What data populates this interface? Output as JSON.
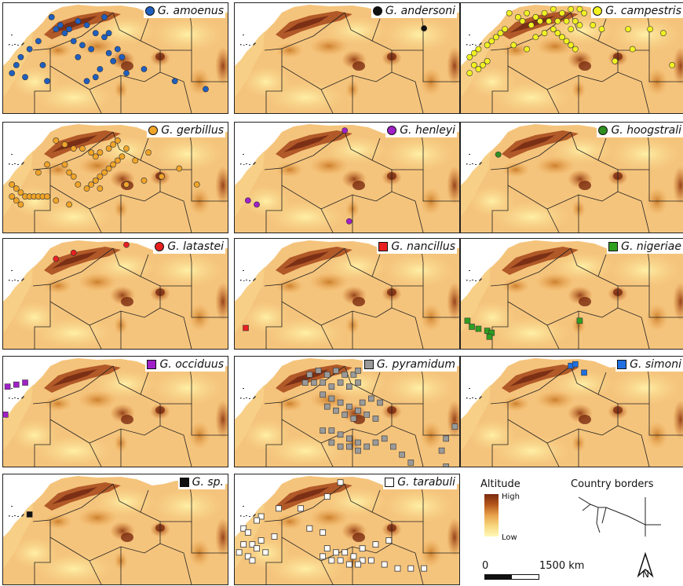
{
  "panels": [
    {
      "id": "amoenus",
      "label": "G. amoenus",
      "symbol": "circle",
      "color": "#1f5fbf",
      "points": [
        [
          -7,
          34
        ],
        [
          -5,
          32
        ],
        [
          -3,
          31
        ],
        [
          -1,
          33
        ],
        [
          1,
          32
        ],
        [
          3,
          30
        ],
        [
          5,
          29
        ],
        [
          -6,
          31
        ],
        [
          -4,
          30
        ],
        [
          -2,
          28
        ],
        [
          0,
          27
        ],
        [
          2,
          26
        ],
        [
          -10,
          28
        ],
        [
          -12,
          26
        ],
        [
          -14,
          24
        ],
        [
          -15,
          22
        ],
        [
          -16,
          20
        ],
        [
          -13,
          19
        ],
        [
          -8,
          18
        ],
        [
          4,
          21
        ],
        [
          3,
          19
        ],
        [
          1,
          18
        ],
        [
          7,
          23
        ],
        [
          6,
          25
        ],
        [
          8,
          26
        ],
        [
          9,
          24
        ],
        [
          -1,
          24
        ],
        [
          10,
          20
        ],
        [
          14,
          21
        ],
        [
          21,
          18
        ],
        [
          28,
          16
        ],
        [
          -9,
          22
        ],
        [
          6,
          30
        ],
        [
          5,
          34
        ]
      ]
    },
    {
      "id": "andersoni",
      "label": "G. andersoni",
      "symbol": "circle",
      "color": "#111111",
      "points": [
        [
          25,
          31.2
        ]
      ]
    },
    {
      "id": "campestris",
      "label": "G. campestris",
      "symbol": "circle",
      "color": "#f2f220",
      "points": [
        [
          -7,
          35
        ],
        [
          -5,
          34
        ],
        [
          -3,
          35
        ],
        [
          -1,
          34
        ],
        [
          1,
          35
        ],
        [
          3,
          36
        ],
        [
          5,
          35
        ],
        [
          7,
          36
        ],
        [
          9,
          36
        ],
        [
          10,
          35
        ],
        [
          -4,
          33
        ],
        [
          -2,
          32
        ],
        [
          0,
          33
        ],
        [
          2,
          33
        ],
        [
          4,
          33
        ],
        [
          6,
          33
        ],
        [
          8,
          33
        ],
        [
          9,
          32
        ],
        [
          3,
          31
        ],
        [
          4,
          30
        ],
        [
          5,
          29
        ],
        [
          6,
          28
        ],
        [
          7,
          27
        ],
        [
          8,
          26
        ],
        [
          -8,
          31
        ],
        [
          -9,
          30
        ],
        [
          -10,
          29
        ],
        [
          -11,
          28
        ],
        [
          -12,
          27
        ],
        [
          -14,
          26
        ],
        [
          -15,
          25
        ],
        [
          -16,
          24
        ],
        [
          -15,
          22
        ],
        [
          -14,
          21
        ],
        [
          -16,
          20
        ],
        [
          -13,
          22
        ],
        [
          -12,
          23
        ],
        [
          12,
          32
        ],
        [
          14,
          31
        ],
        [
          20,
          31
        ],
        [
          25,
          31
        ],
        [
          28,
          30
        ],
        [
          21,
          26
        ],
        [
          30,
          22
        ],
        [
          17,
          23
        ],
        [
          -6,
          27
        ],
        [
          -3,
          26
        ],
        [
          -1,
          29
        ],
        [
          1,
          30
        ],
        [
          7,
          31
        ]
      ]
    },
    {
      "id": "gerbillus",
      "label": "G. gerbillus",
      "symbol": "circle",
      "color": "#f0a428",
      "points": [
        [
          -6,
          33
        ],
        [
          -4,
          32
        ],
        [
          -2,
          31
        ],
        [
          0,
          31
        ],
        [
          2,
          30
        ],
        [
          3,
          29
        ],
        [
          4,
          30
        ],
        [
          6,
          31
        ],
        [
          7,
          32
        ],
        [
          8,
          33
        ],
        [
          10,
          31
        ],
        [
          9,
          29
        ],
        [
          8,
          28
        ],
        [
          7,
          27
        ],
        [
          6,
          26
        ],
        [
          5,
          25
        ],
        [
          4,
          24
        ],
        [
          3,
          23
        ],
        [
          2,
          22
        ],
        [
          1,
          21
        ],
        [
          -1,
          22
        ],
        [
          -2,
          24
        ],
        [
          -3,
          25
        ],
        [
          -4,
          27
        ],
        [
          -16,
          22
        ],
        [
          -15,
          21
        ],
        [
          -14,
          20
        ],
        [
          -13,
          19
        ],
        [
          -12,
          19
        ],
        [
          -11,
          19
        ],
        [
          -10,
          19
        ],
        [
          -9,
          19
        ],
        [
          -8,
          19
        ],
        [
          -16,
          19
        ],
        [
          -15,
          18
        ],
        [
          -14,
          17
        ],
        [
          -6,
          18
        ],
        [
          -3,
          17
        ],
        [
          4,
          21
        ],
        [
          10,
          22
        ],
        [
          14,
          23
        ],
        [
          18,
          24
        ],
        [
          22,
          26
        ],
        [
          26,
          22
        ],
        [
          12,
          28
        ],
        [
          15,
          30
        ],
        [
          -8,
          27
        ],
        [
          -10,
          25
        ]
      ]
    },
    {
      "id": "henleyi",
      "label": "G. henleyi",
      "symbol": "circle",
      "color": "#a020c8",
      "points": [
        [
          7,
          35.5
        ],
        [
          -15,
          18
        ],
        [
          -13,
          17
        ],
        [
          8,
          12.8
        ]
      ]
    },
    {
      "id": "hoogstrali",
      "label": "G. hoogstrali",
      "symbol": "circle",
      "color": "#2f8f20",
      "points": [
        [
          -9.5,
          29.5
        ]
      ]
    },
    {
      "id": "latastei",
      "label": "G. latastei",
      "symbol": "circle",
      "color": "#e82020",
      "points": [
        [
          -6,
          32.5
        ],
        [
          -2,
          34
        ],
        [
          10,
          36
        ]
      ]
    },
    {
      "id": "nancillus",
      "label": "G. nancillus",
      "symbol": "square",
      "color": "#e82020",
      "points": [
        [
          -15.5,
          15.2
        ]
      ]
    },
    {
      "id": "nigeriae",
      "label": "G. nigeriae",
      "symbol": "square",
      "color": "#2f9f20",
      "points": [
        [
          -16.5,
          17
        ],
        [
          -15.5,
          15.5
        ],
        [
          -14,
          15
        ],
        [
          -12,
          14.5
        ],
        [
          -11,
          14
        ],
        [
          -11.5,
          13
        ],
        [
          9,
          17
        ]
      ]
    },
    {
      "id": "occiduus",
      "label": "G. occiduus",
      "symbol": "square",
      "color": "#a020c8",
      "points": [
        [
          -17,
          30
        ],
        [
          -15,
          30.5
        ],
        [
          -13,
          31
        ],
        [
          -17.5,
          23
        ]
      ]
    },
    {
      "id": "pyramidum",
      "label": "G. pyramidum",
      "symbol": "square",
      "color": "#9a9a9a",
      "points": [
        [
          -1,
          33
        ],
        [
          1,
          34
        ],
        [
          3,
          33
        ],
        [
          5,
          34
        ],
        [
          7,
          33
        ],
        [
          9,
          33
        ],
        [
          10,
          34
        ],
        [
          12,
          35
        ],
        [
          -2,
          31
        ],
        [
          0,
          31
        ],
        [
          2,
          31
        ],
        [
          4,
          30
        ],
        [
          6,
          31
        ],
        [
          8,
          30
        ],
        [
          10,
          31
        ],
        [
          2,
          28
        ],
        [
          4,
          27
        ],
        [
          6,
          26
        ],
        [
          8,
          25
        ],
        [
          10,
          24
        ],
        [
          12,
          23
        ],
        [
          14,
          22
        ],
        [
          3,
          25
        ],
        [
          5,
          24
        ],
        [
          7,
          23
        ],
        [
          9,
          22
        ],
        [
          11,
          26
        ],
        [
          13,
          27
        ],
        [
          15,
          26
        ],
        [
          2,
          19
        ],
        [
          4,
          19
        ],
        [
          6,
          18
        ],
        [
          8,
          17
        ],
        [
          10,
          16
        ],
        [
          12,
          15
        ],
        [
          14,
          16
        ],
        [
          16,
          17
        ],
        [
          18,
          15
        ],
        [
          20,
          13
        ],
        [
          22,
          11
        ],
        [
          4,
          16
        ],
        [
          6,
          15
        ],
        [
          8,
          15
        ],
        [
          10,
          14
        ],
        [
          30,
          17
        ],
        [
          29,
          14
        ],
        [
          32,
          20
        ],
        [
          30,
          10
        ]
      ]
    },
    {
      "id": "simoni",
      "label": "G. simoni",
      "symbol": "square",
      "color": "#1f6fe0",
      "points": [
        [
          7,
          35.2
        ],
        [
          8,
          35.6
        ],
        [
          10,
          33.5
        ]
      ]
    },
    {
      "id": "sp",
      "label": "G. sp.",
      "symbol": "square",
      "color": "#111111",
      "points": [
        [
          -12,
          27.5
        ]
      ]
    },
    {
      "id": "tarabuli",
      "label": "G. tarabuli",
      "symbol": "square",
      "color": "#ffffff",
      "points": [
        [
          6,
          35.5
        ],
        [
          3,
          32
        ],
        [
          -3,
          29
        ],
        [
          -8,
          29
        ],
        [
          -12,
          27
        ],
        [
          -13,
          26
        ],
        [
          -16,
          24
        ],
        [
          -15,
          23
        ],
        [
          -16,
          20
        ],
        [
          -14,
          20
        ],
        [
          -12,
          21
        ],
        [
          -13,
          19
        ],
        [
          -11,
          18
        ],
        [
          -17,
          18
        ],
        [
          -15,
          17
        ],
        [
          -14,
          16
        ],
        [
          3,
          19
        ],
        [
          5,
          18
        ],
        [
          7,
          18
        ],
        [
          9,
          17
        ],
        [
          11,
          16
        ],
        [
          2,
          17
        ],
        [
          4,
          16
        ],
        [
          6,
          16
        ],
        [
          8,
          15
        ],
        [
          10,
          15
        ],
        [
          13,
          16
        ],
        [
          16,
          15
        ],
        [
          19,
          14
        ],
        [
          22,
          14
        ],
        [
          14,
          20
        ],
        [
          11,
          19
        ],
        [
          17,
          21
        ],
        [
          -9,
          22
        ],
        [
          2,
          23
        ],
        [
          -1,
          24
        ],
        [
          25,
          14
        ]
      ]
    }
  ],
  "legend": {
    "altitude_title": "Altitude",
    "high_label": "High",
    "low_label": "Low",
    "borders_title": "Country borders",
    "scale_start": "0",
    "scale_end": "1500 km",
    "north_label": "N",
    "altitude_colors": [
      "#7a2a0f",
      "#fff9b8"
    ]
  }
}
